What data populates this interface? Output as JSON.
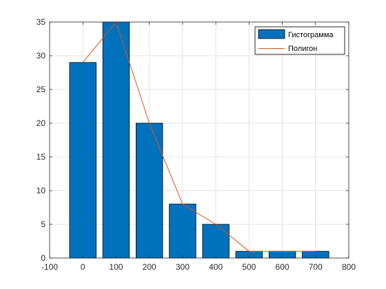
{
  "chart_data": {
    "type": "bar",
    "x": [
      0,
      100,
      200,
      300,
      400,
      500,
      600,
      700
    ],
    "series": [
      {
        "name": "Гистограмма",
        "type": "bar",
        "values": [
          29,
          35,
          20,
          8,
          5,
          1,
          1,
          1
        ],
        "color": "#0072bd"
      },
      {
        "name": "Полигон",
        "type": "line",
        "values": [
          29,
          35,
          20,
          8,
          5,
          1,
          1,
          1
        ],
        "color": "#d95319"
      }
    ],
    "xlim": [
      -100,
      800
    ],
    "ylim": [
      0,
      35
    ],
    "xticks": [
      "-100",
      "0",
      "100",
      "200",
      "300",
      "400",
      "500",
      "600",
      "700",
      "800"
    ],
    "yticks": [
      "0",
      "5",
      "10",
      "15",
      "20",
      "25",
      "30",
      "35"
    ],
    "grid": true,
    "legend_position": "top-right",
    "title": "",
    "xlabel": "",
    "ylabel": ""
  }
}
